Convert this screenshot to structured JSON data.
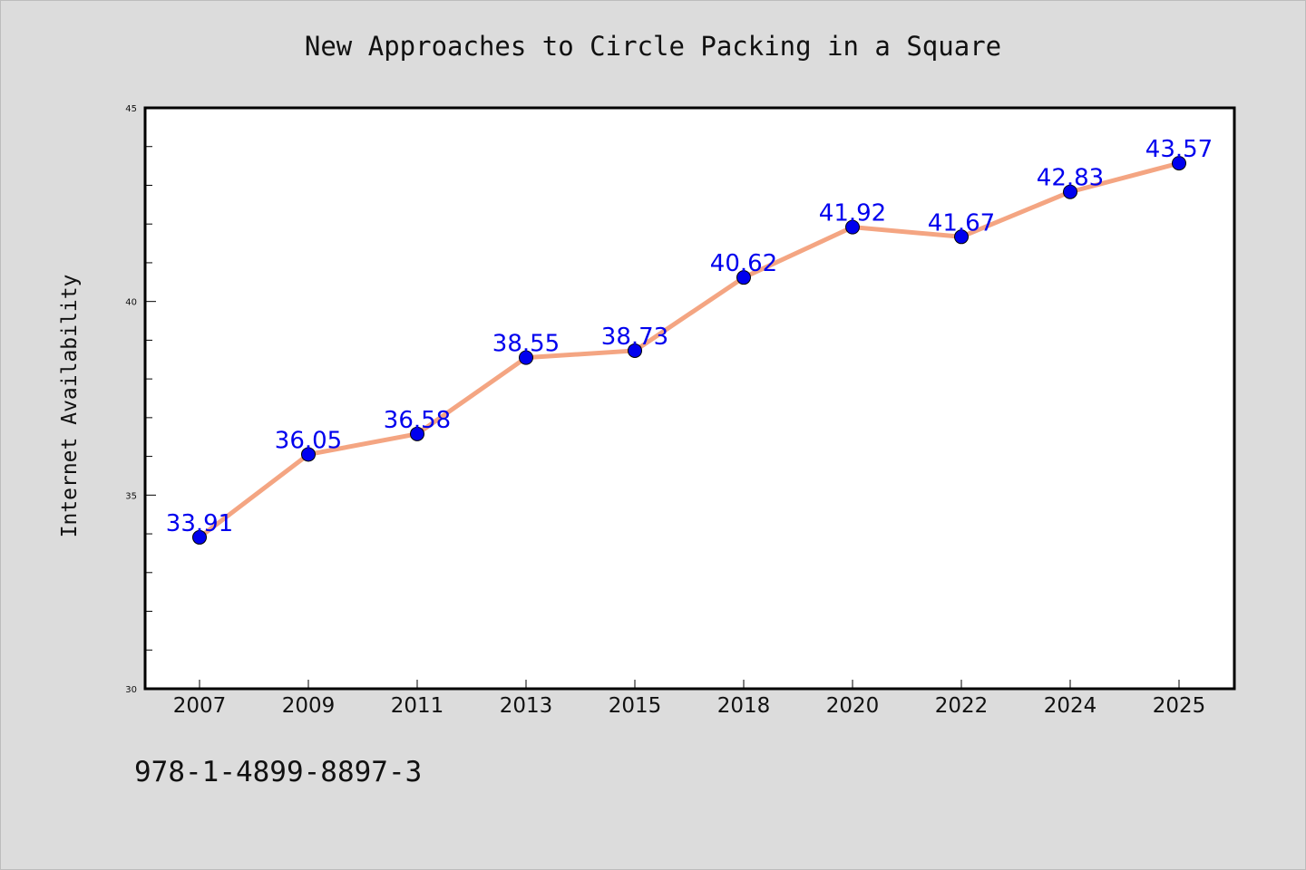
{
  "chart_data": {
    "type": "line",
    "title": "New Approaches to Circle Packing in a Square",
    "ylabel": "Internet Availability",
    "xlabel": "",
    "categories": [
      "2007",
      "2009",
      "2011",
      "2013",
      "2015",
      "2018",
      "2020",
      "2022",
      "2024",
      "2025"
    ],
    "values": [
      33.91,
      36.05,
      36.58,
      38.55,
      38.73,
      40.62,
      41.92,
      41.67,
      42.83,
      43.57
    ],
    "data_labels": [
      "33.91",
      "36.05",
      "36.58",
      "38.55",
      "38.73",
      "40.62",
      "41.92",
      "41.67",
      "42.83",
      "43.57"
    ],
    "ylim": [
      30,
      45
    ],
    "y_major_ticks": [
      30,
      35,
      40,
      45
    ],
    "y_minor_step": 1,
    "grid": false,
    "legend": "none",
    "colors": {
      "line": "#f4a582",
      "marker": "#0000ee",
      "data_label": "#0000ee",
      "plot_background": "#ffffff",
      "page_background": "#dcdcdc"
    }
  },
  "footer": {
    "code": "978-1-4899-8897-3"
  }
}
